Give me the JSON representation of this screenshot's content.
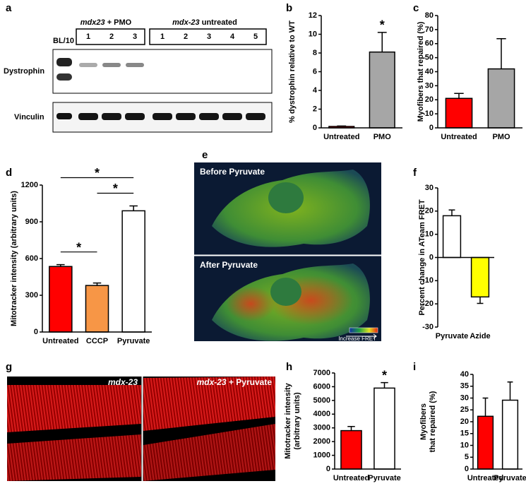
{
  "panel_labels": [
    "a",
    "b",
    "c",
    "d",
    "e",
    "f",
    "g",
    "h",
    "i"
  ],
  "blot": {
    "ladder": "BL/10",
    "groups": [
      {
        "strain": "mdx23",
        "treatment": "+ PMO",
        "lanes": [
          "1",
          "2",
          "3"
        ]
      },
      {
        "strain": "mdx-23",
        "treatment": "untreated",
        "lanes": [
          "1",
          "2",
          "3",
          "4",
          "5"
        ]
      }
    ],
    "rows": [
      "Dystrophin",
      "Vinculin"
    ]
  },
  "fret_images": {
    "top": "Before Pyruvate",
    "bottom": "After Pyruvate",
    "scale_label": "Increase FRET"
  },
  "muscle_images": [
    {
      "strain": "mdx-23"
    },
    {
      "strain": "mdx-23",
      "treatment": "+ Pyruvate"
    }
  ],
  "chart_data": [
    {
      "type": "bar",
      "ylabel": [
        "% dystrophin relative to WT"
      ],
      "categories": [
        "Untreated",
        "PMO"
      ],
      "values": [
        0.15,
        8.1
      ],
      "errors": [
        0.05,
        2.1
      ],
      "colors": [
        "#ff0000",
        "#a6a6a6"
      ],
      "ylim": [
        0,
        12
      ],
      "yticks": [
        0,
        2,
        4,
        6,
        8,
        10,
        12
      ],
      "annotations": [
        {
          "text": "*",
          "category": "PMO"
        }
      ]
    },
    {
      "type": "bar",
      "ylabel": [
        "Myofibers that repaired (%)"
      ],
      "categories": [
        "Untreated",
        "PMO"
      ],
      "values": [
        21,
        42
      ],
      "errors": [
        3.5,
        21.5
      ],
      "colors": [
        "#ff0000",
        "#a6a6a6"
      ],
      "ylim": [
        0,
        80
      ],
      "yticks": [
        0,
        10,
        20,
        30,
        40,
        50,
        60,
        70,
        80
      ],
      "annotations": []
    },
    {
      "type": "bar",
      "ylabel": [
        "Mitotracker intensity (arbitrary units)"
      ],
      "categories": [
        "Untreated",
        "CCCP",
        "Pyruvate"
      ],
      "values": [
        535,
        380,
        990
      ],
      "errors": [
        15,
        20,
        40
      ],
      "colors": [
        "#ff0000",
        "#f79646",
        "#ffffff"
      ],
      "ylim": [
        0,
        1200
      ],
      "yticks": [
        0,
        300,
        600,
        900,
        1200
      ],
      "annotations": [
        {
          "text": "*",
          "between": [
            "Untreated",
            "CCCP"
          ]
        },
        {
          "text": "*",
          "between": [
            "CCCP",
            "Pyruvate"
          ]
        },
        {
          "text": "*",
          "between": [
            "Untreated",
            "Pyruvate"
          ]
        }
      ]
    },
    {
      "type": "bar",
      "ylabel": [
        "Percent change in ATeam FRET"
      ],
      "categories": [
        "Pyruvate",
        "Azide"
      ],
      "values": [
        18,
        -17
      ],
      "errors": [
        2.5,
        2.8
      ],
      "colors": [
        "#ffffff",
        "#ffff00"
      ],
      "ylim": [
        -30,
        30
      ],
      "yticks": [
        -30,
        -20,
        -10,
        0,
        10,
        20,
        30
      ],
      "annotations": []
    },
    {
      "type": "bar",
      "ylabel": [
        "Mitotracker intensity",
        "(arbitrary units)"
      ],
      "categories": [
        "Untreated",
        "Pyruvate"
      ],
      "values": [
        2800,
        5900
      ],
      "errors": [
        300,
        400
      ],
      "colors": [
        "#ff0000",
        "#ffffff"
      ],
      "ylim": [
        0,
        7000
      ],
      "yticks": [
        0,
        1000,
        2000,
        3000,
        4000,
        5000,
        6000,
        7000
      ],
      "annotations": [
        {
          "text": "*",
          "category": "Pyruvate"
        }
      ]
    },
    {
      "type": "bar",
      "ylabel": [
        "Myofibers",
        "that repaired (%)"
      ],
      "categories": [
        "Untreated",
        "Pyruvate"
      ],
      "values": [
        22.3,
        29.1
      ],
      "errors": [
        7.7,
        7.7
      ],
      "colors": [
        "#ff0000",
        "#ffffff"
      ],
      "ylim": [
        0,
        40
      ],
      "yticks": [
        0,
        5,
        10,
        15,
        20,
        25,
        30,
        35,
        40
      ],
      "annotations": []
    }
  ]
}
